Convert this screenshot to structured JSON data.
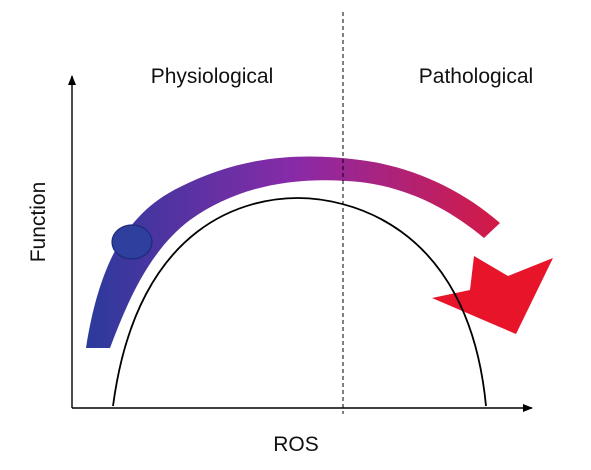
{
  "regions": {
    "left_label": "Physiological",
    "right_label": "Pathological"
  },
  "axes": {
    "x_label": "ROS",
    "y_label": "Function"
  },
  "colors": {
    "arrow_start": "#2b3a9c",
    "arrow_mid": "#8a2aa8",
    "arrow_end": "#e8152a",
    "marker": "#2e3f9e",
    "line": "#000000"
  }
}
